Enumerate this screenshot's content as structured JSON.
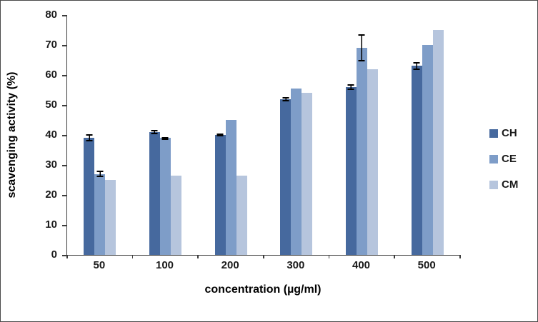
{
  "chart_data": {
    "type": "bar",
    "title": "",
    "xlabel": "concentration (µg/ml)",
    "ylabel": "scavenging activity (%)",
    "ylim": [
      0,
      80
    ],
    "ytick_step": 10,
    "grid": false,
    "legend_position": "right",
    "categories": [
      "50",
      "100",
      "200",
      "300",
      "400",
      "500"
    ],
    "series": [
      {
        "name": "CH",
        "color": "#46699e",
        "values": [
          39,
          41,
          40,
          52,
          56,
          63
        ],
        "errors": [
          1.2,
          0.7,
          0.5,
          0.7,
          1.0,
          1.4
        ]
      },
      {
        "name": "CE",
        "color": "#7e9dc8",
        "values": [
          27,
          39,
          45,
          55.5,
          69,
          70
        ],
        "errors": [
          1.0,
          0.4,
          0,
          0,
          4.5,
          0
        ]
      },
      {
        "name": "CM",
        "color": "#b6c5dd",
        "values": [
          25,
          26.5,
          26.5,
          54,
          62,
          75
        ],
        "errors": [
          0,
          0,
          0,
          0,
          0,
          0
        ]
      }
    ]
  }
}
